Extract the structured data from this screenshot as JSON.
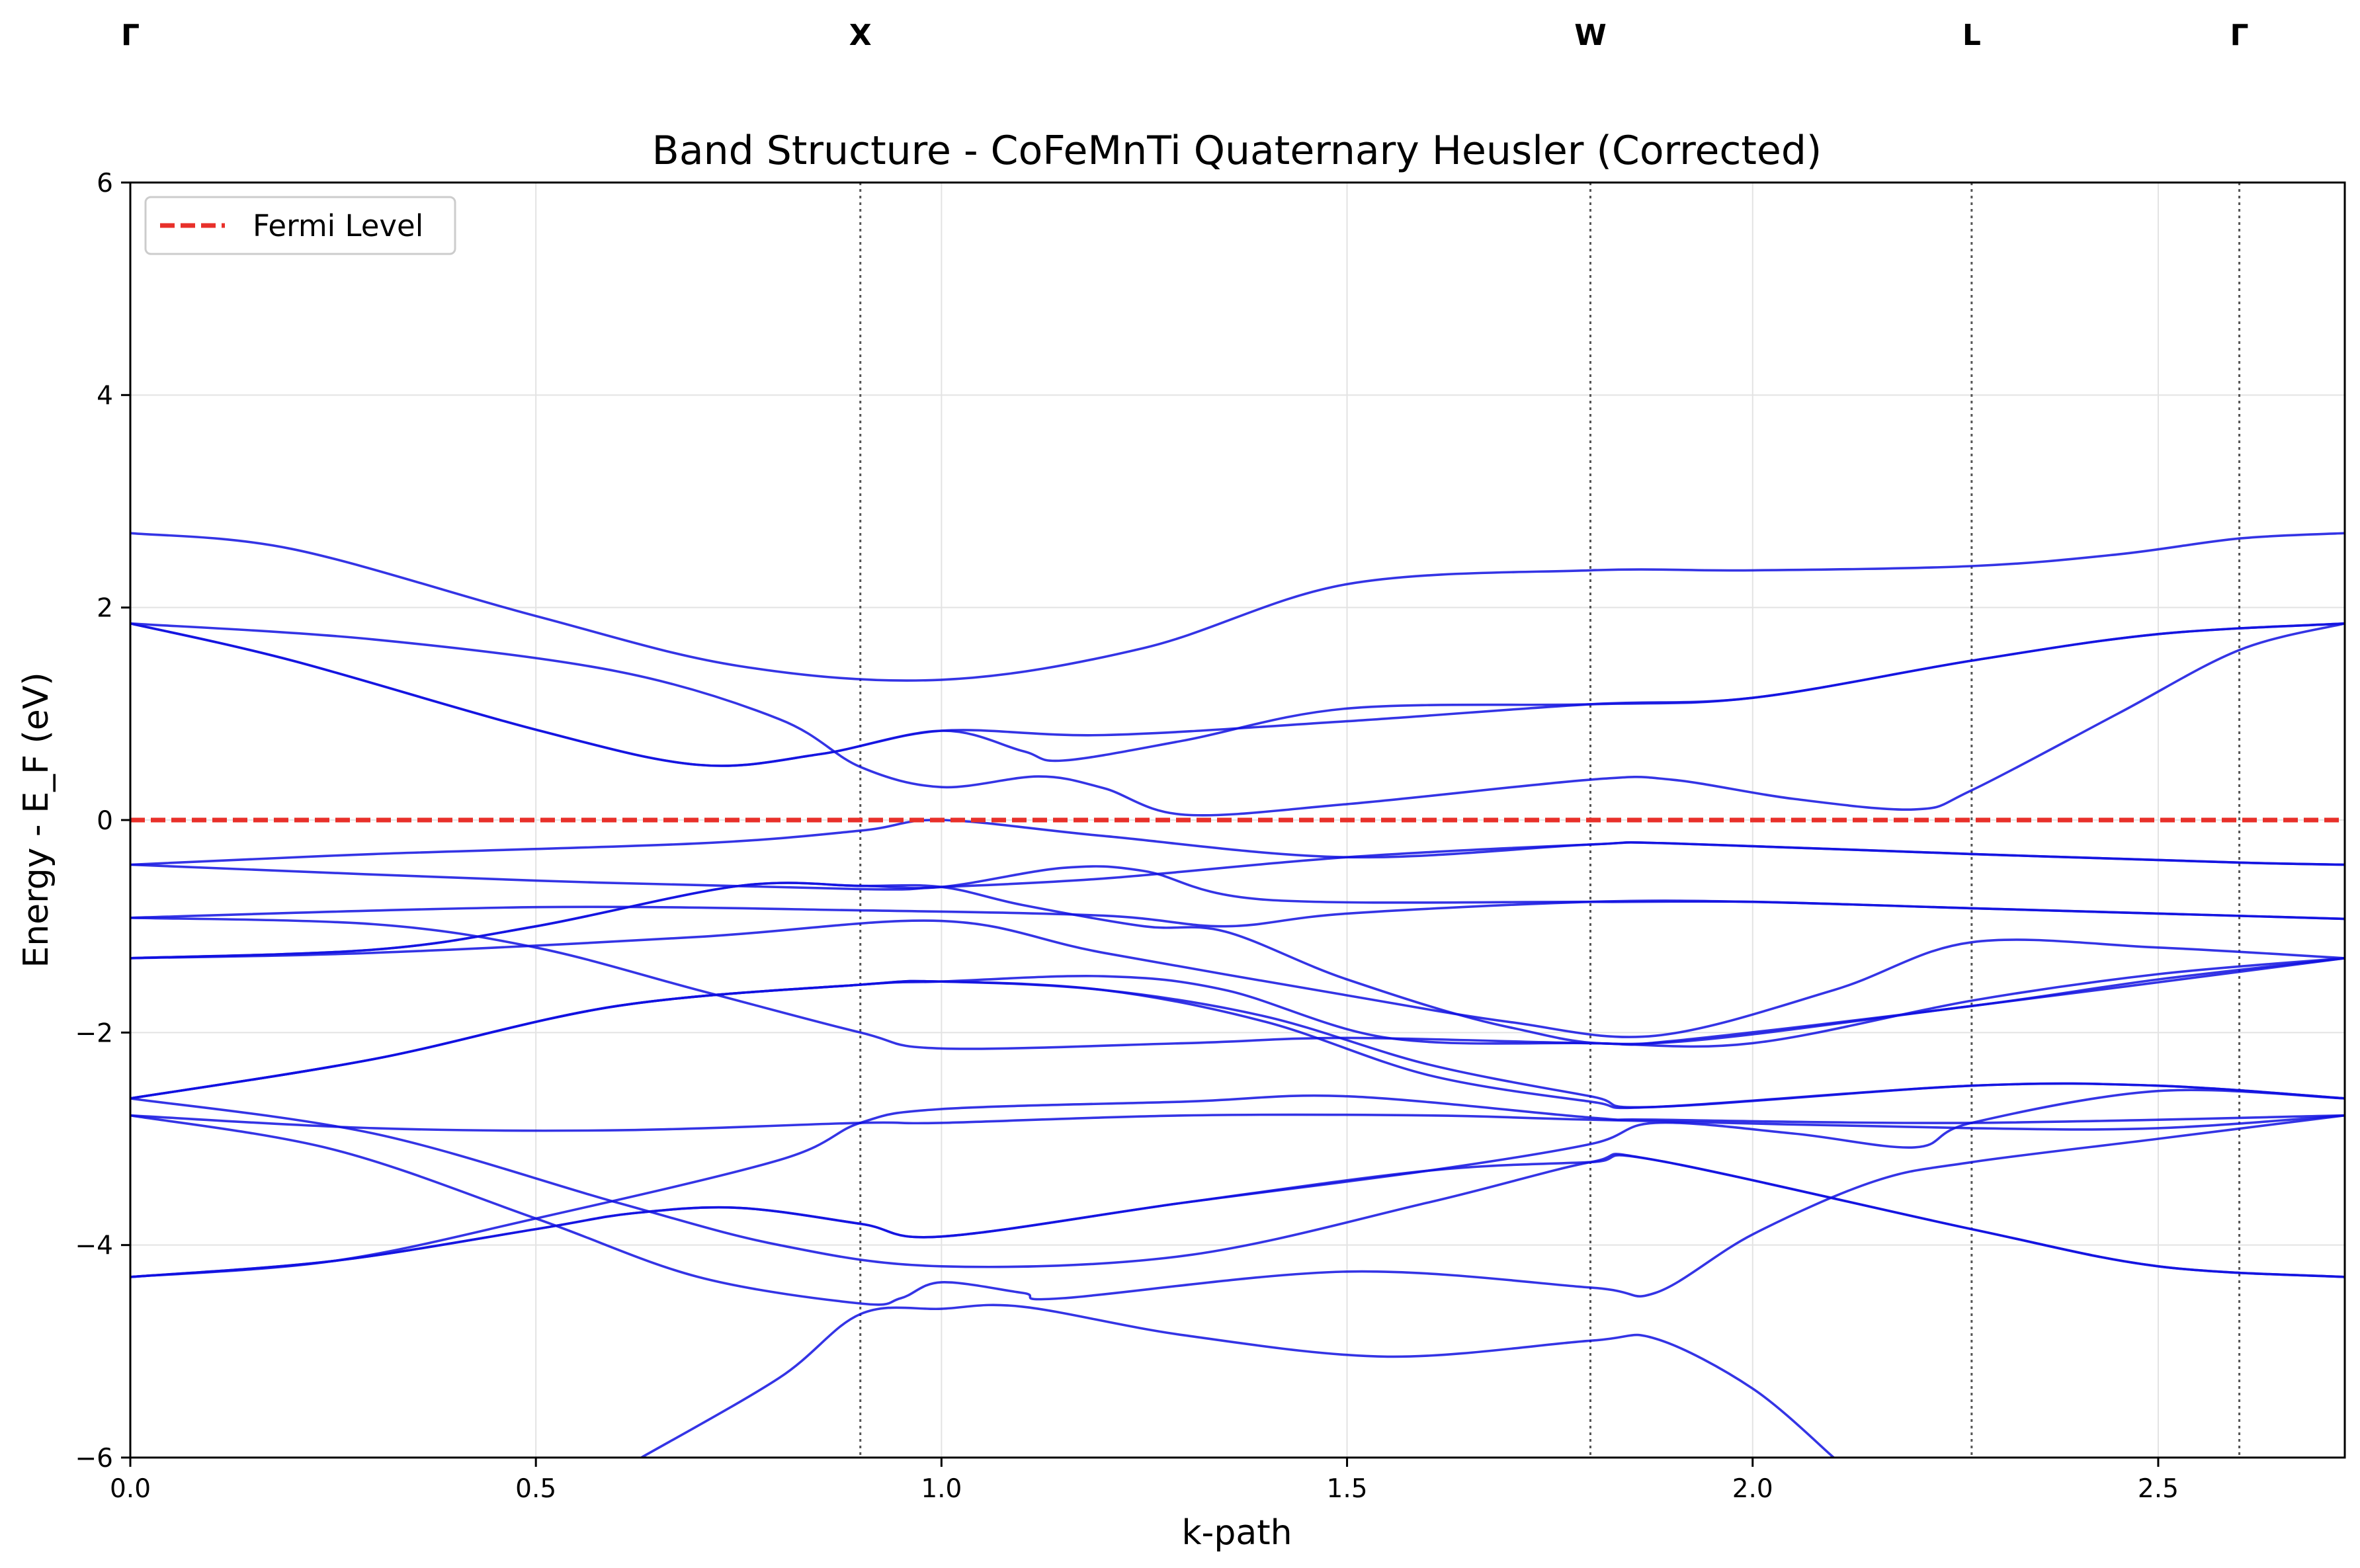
{
  "chart_data": {
    "type": "line",
    "title": "Band Structure - CoFeMnTi Quaternary Heusler (Corrected)",
    "xlabel": "k-path",
    "ylabel": "Energy - E_F (eV)",
    "xlim": [
      0.0,
      2.73
    ],
    "ylim": [
      -6,
      6
    ],
    "x_ticks": [
      0.0,
      0.5,
      1.0,
      1.5,
      2.0,
      2.5
    ],
    "x_tick_labels": [
      "0.0",
      "0.5",
      "1.0",
      "1.5",
      "2.0",
      "2.5"
    ],
    "y_ticks": [
      -6,
      -4,
      -2,
      0,
      2,
      4,
      6
    ],
    "y_tick_labels": [
      "−6",
      "−4",
      "−2",
      "0",
      "2",
      "4",
      "6"
    ],
    "grid": true,
    "legend": {
      "position": "top-left",
      "entries": [
        "Fermi Level"
      ]
    },
    "fermi_level": {
      "name": "Fermi Level",
      "y": 0,
      "color": "#e8302a",
      "style": "dashed"
    },
    "band_color": "#1010e0",
    "high_symmetry_points": [
      {
        "label": "Γ",
        "x": 0.0
      },
      {
        "label": "X",
        "x": 0.9
      },
      {
        "label": "W",
        "x": 1.8
      },
      {
        "label": "L",
        "x": 2.27
      },
      {
        "label": "Γ",
        "x": 2.6
      }
    ],
    "series": [
      {
        "points": [
          [
            0,
            2.7
          ],
          [
            0.2,
            2.55
          ],
          [
            0.5,
            1.92
          ],
          [
            0.75,
            1.45
          ],
          [
            1.0,
            1.32
          ],
          [
            1.25,
            1.62
          ],
          [
            1.5,
            2.22
          ],
          [
            1.8,
            2.35
          ],
          [
            2.0,
            2.35
          ],
          [
            2.27,
            2.39
          ],
          [
            2.45,
            2.5
          ],
          [
            2.6,
            2.65
          ],
          [
            2.73,
            2.7
          ]
        ]
      },
      {
        "points": [
          [
            0,
            1.85
          ],
          [
            0.3,
            1.7
          ],
          [
            0.6,
            1.4
          ],
          [
            0.8,
            0.95
          ],
          [
            0.9,
            0.5
          ],
          [
            1.0,
            0.31
          ],
          [
            1.12,
            0.41
          ],
          [
            1.2,
            0.3
          ],
          [
            1.3,
            0.05
          ],
          [
            1.5,
            0.15
          ],
          [
            1.8,
            0.38
          ],
          [
            1.9,
            0.38
          ],
          [
            2.05,
            0.2
          ],
          [
            2.2,
            0.1
          ],
          [
            2.27,
            0.28
          ],
          [
            2.45,
            1.0
          ],
          [
            2.6,
            1.6
          ],
          [
            2.73,
            1.85
          ]
        ]
      },
      {
        "points": [
          [
            0,
            1.85
          ],
          [
            0.2,
            1.5
          ],
          [
            0.5,
            0.85
          ],
          [
            0.7,
            0.52
          ],
          [
            0.85,
            0.62
          ],
          [
            1.0,
            0.84
          ],
          [
            1.1,
            0.65
          ],
          [
            1.15,
            0.56
          ],
          [
            1.3,
            0.75
          ],
          [
            1.5,
            1.05
          ],
          [
            1.8,
            1.09
          ],
          [
            2.0,
            1.15
          ],
          [
            2.27,
            1.5
          ],
          [
            2.5,
            1.75
          ],
          [
            2.73,
            1.85
          ]
        ]
      },
      {
        "points": [
          [
            0,
            1.85
          ],
          [
            0.2,
            1.5
          ],
          [
            0.5,
            0.85
          ],
          [
            0.7,
            0.52
          ],
          [
            0.85,
            0.62
          ],
          [
            1.0,
            0.84
          ],
          [
            1.2,
            0.8
          ],
          [
            1.5,
            0.93
          ],
          [
            1.8,
            1.09
          ],
          [
            2.0,
            1.15
          ],
          [
            2.27,
            1.5
          ],
          [
            2.5,
            1.75
          ],
          [
            2.73,
            1.85
          ]
        ]
      },
      {
        "points": [
          [
            0,
            -0.42
          ],
          [
            0.3,
            -0.32
          ],
          [
            0.7,
            -0.22
          ],
          [
            0.9,
            -0.1
          ],
          [
            1.0,
            0.0
          ],
          [
            1.2,
            -0.15
          ],
          [
            1.5,
            -0.35
          ],
          [
            1.8,
            -0.23
          ],
          [
            1.9,
            -0.22
          ],
          [
            2.27,
            -0.32
          ],
          [
            2.6,
            -0.4
          ],
          [
            2.73,
            -0.42
          ]
        ]
      },
      {
        "points": [
          [
            0,
            -0.42
          ],
          [
            0.5,
            -0.57
          ],
          [
            0.9,
            -0.65
          ],
          [
            1.0,
            -0.63
          ],
          [
            1.2,
            -0.55
          ],
          [
            1.5,
            -0.35
          ],
          [
            1.8,
            -0.23
          ],
          [
            1.9,
            -0.22
          ],
          [
            2.27,
            -0.32
          ],
          [
            2.6,
            -0.4
          ],
          [
            2.73,
            -0.42
          ]
        ]
      },
      {
        "points": [
          [
            0,
            -0.92
          ],
          [
            0.5,
            -0.82
          ],
          [
            0.9,
            -0.85
          ],
          [
            1.2,
            -0.9
          ],
          [
            1.35,
            -1.0
          ],
          [
            1.5,
            -0.88
          ],
          [
            1.8,
            -0.77
          ],
          [
            2.0,
            -0.77
          ],
          [
            2.27,
            -0.83
          ],
          [
            2.73,
            -0.93
          ]
        ]
      },
      {
        "points": [
          [
            0,
            -0.92
          ],
          [
            0.3,
            -0.98
          ],
          [
            0.5,
            -1.2
          ],
          [
            0.7,
            -1.6
          ],
          [
            0.9,
            -2.0
          ],
          [
            1.0,
            -2.15
          ],
          [
            1.3,
            -2.1
          ],
          [
            1.5,
            -2.05
          ],
          [
            1.8,
            -2.1
          ],
          [
            1.9,
            -2.08
          ],
          [
            2.27,
            -1.75
          ],
          [
            2.5,
            -1.5
          ],
          [
            2.73,
            -1.3
          ]
        ]
      },
      {
        "points": [
          [
            0,
            -1.3
          ],
          [
            0.3,
            -1.22
          ],
          [
            0.5,
            -1.0
          ],
          [
            0.75,
            -0.62
          ],
          [
            0.9,
            -0.62
          ],
          [
            1.0,
            -0.63
          ],
          [
            1.1,
            -0.8
          ],
          [
            1.25,
            -1.0
          ],
          [
            1.35,
            -1.05
          ],
          [
            1.5,
            -1.5
          ],
          [
            1.7,
            -1.95
          ],
          [
            1.88,
            -2.1
          ],
          [
            2.27,
            -1.75
          ],
          [
            2.73,
            -1.3
          ]
        ]
      },
      {
        "points": [
          [
            0,
            -1.3
          ],
          [
            0.3,
            -1.25
          ],
          [
            0.7,
            -1.1
          ],
          [
            1.0,
            -0.95
          ],
          [
            1.2,
            -1.25
          ],
          [
            1.5,
            -1.65
          ],
          [
            1.7,
            -1.9
          ],
          [
            1.88,
            -2.03
          ],
          [
            2.1,
            -1.6
          ],
          [
            2.27,
            -1.15
          ],
          [
            2.5,
            -1.2
          ],
          [
            2.73,
            -1.3
          ]
        ]
      },
      {
        "points": [
          [
            0,
            -1.3
          ],
          [
            0.3,
            -1.22
          ],
          [
            0.5,
            -1.0
          ],
          [
            0.75,
            -0.62
          ],
          [
            0.9,
            -0.62
          ],
          [
            1.0,
            -0.63
          ],
          [
            1.15,
            -0.45
          ],
          [
            1.25,
            -0.48
          ],
          [
            1.4,
            -0.75
          ],
          [
            1.8,
            -0.77
          ],
          [
            2.0,
            -0.77
          ],
          [
            2.27,
            -0.83
          ],
          [
            2.73,
            -0.93
          ]
        ]
      },
      {
        "points": [
          [
            0,
            -2.62
          ],
          [
            0.3,
            -2.25
          ],
          [
            0.6,
            -1.75
          ],
          [
            0.9,
            -1.55
          ],
          [
            1.0,
            -1.52
          ],
          [
            1.2,
            -1.47
          ],
          [
            1.35,
            -1.6
          ],
          [
            1.55,
            -2.05
          ],
          [
            1.8,
            -2.1
          ],
          [
            2.0,
            -2.1
          ],
          [
            2.27,
            -1.7
          ],
          [
            2.5,
            -1.45
          ],
          [
            2.73,
            -1.3
          ]
        ]
      },
      {
        "points": [
          [
            0,
            -2.62
          ],
          [
            0.3,
            -2.25
          ],
          [
            0.6,
            -1.75
          ],
          [
            0.9,
            -1.55
          ],
          [
            1.0,
            -1.52
          ],
          [
            1.2,
            -1.6
          ],
          [
            1.4,
            -1.85
          ],
          [
            1.6,
            -2.3
          ],
          [
            1.8,
            -2.6
          ],
          [
            1.88,
            -2.7
          ],
          [
            2.27,
            -2.5
          ],
          [
            2.5,
            -2.5
          ],
          [
            2.73,
            -2.62
          ]
        ]
      },
      {
        "points": [
          [
            0,
            -2.62
          ],
          [
            0.3,
            -2.25
          ],
          [
            0.6,
            -1.75
          ],
          [
            0.9,
            -1.55
          ],
          [
            1.0,
            -1.52
          ],
          [
            1.2,
            -1.6
          ],
          [
            1.4,
            -1.9
          ],
          [
            1.6,
            -2.4
          ],
          [
            1.8,
            -2.65
          ],
          [
            1.88,
            -2.7
          ],
          [
            2.27,
            -2.5
          ],
          [
            2.5,
            -2.5
          ],
          [
            2.73,
            -2.62
          ]
        ]
      },
      {
        "points": [
          [
            0,
            -2.62
          ],
          [
            0.3,
            -2.95
          ],
          [
            0.6,
            -3.6
          ],
          [
            0.8,
            -4.0
          ],
          [
            1.0,
            -4.2
          ],
          [
            1.3,
            -4.1
          ],
          [
            1.6,
            -3.6
          ],
          [
            1.8,
            -3.22
          ],
          [
            1.88,
            -3.2
          ],
          [
            2.27,
            -3.85
          ],
          [
            2.5,
            -4.2
          ],
          [
            2.73,
            -4.3
          ]
        ]
      },
      {
        "points": [
          [
            0,
            -2.78
          ],
          [
            0.3,
            -2.9
          ],
          [
            0.6,
            -2.92
          ],
          [
            0.9,
            -2.85
          ],
          [
            1.0,
            -2.85
          ],
          [
            1.3,
            -2.78
          ],
          [
            1.6,
            -2.78
          ],
          [
            1.8,
            -2.82
          ],
          [
            2.27,
            -2.9
          ],
          [
            2.5,
            -2.9
          ],
          [
            2.73,
            -2.78
          ]
        ]
      },
      {
        "points": [
          [
            0,
            -2.78
          ],
          [
            0.25,
            -3.1
          ],
          [
            0.5,
            -3.75
          ],
          [
            0.7,
            -4.3
          ],
          [
            0.9,
            -4.55
          ],
          [
            0.95,
            -4.5
          ],
          [
            1.0,
            -4.35
          ],
          [
            1.1,
            -4.45
          ],
          [
            1.15,
            -4.5
          ],
          [
            1.5,
            -4.25
          ],
          [
            1.8,
            -4.4
          ],
          [
            1.88,
            -4.45
          ],
          [
            2.0,
            -3.9
          ],
          [
            2.15,
            -3.4
          ],
          [
            2.27,
            -3.22
          ],
          [
            2.5,
            -3.0
          ],
          [
            2.73,
            -2.78
          ]
        ]
      },
      {
        "points": [
          [
            0,
            -4.3
          ],
          [
            0.25,
            -4.15
          ],
          [
            0.5,
            -3.85
          ],
          [
            0.62,
            -3.7
          ],
          [
            0.75,
            -3.65
          ],
          [
            0.9,
            -3.8
          ],
          [
            1.0,
            -3.92
          ],
          [
            1.3,
            -3.6
          ],
          [
            1.6,
            -3.3
          ],
          [
            1.8,
            -3.22
          ],
          [
            1.88,
            -3.2
          ],
          [
            2.27,
            -3.85
          ],
          [
            2.5,
            -4.2
          ],
          [
            2.73,
            -4.3
          ]
        ]
      },
      {
        "points": [
          [
            0,
            -4.3
          ],
          [
            0.25,
            -4.15
          ],
          [
            0.5,
            -3.75
          ],
          [
            0.8,
            -3.2
          ],
          [
            0.9,
            -2.85
          ],
          [
            1.0,
            -2.72
          ],
          [
            1.3,
            -2.65
          ],
          [
            1.5,
            -2.6
          ],
          [
            1.8,
            -2.8
          ],
          [
            1.88,
            -2.82
          ],
          [
            2.27,
            -2.85
          ],
          [
            2.73,
            -2.78
          ]
        ]
      },
      {
        "points": [
          [
            0,
            -4.3
          ],
          [
            0.25,
            -4.15
          ],
          [
            0.5,
            -3.85
          ],
          [
            0.62,
            -3.7
          ],
          [
            0.75,
            -3.65
          ],
          [
            0.9,
            -3.8
          ],
          [
            1.0,
            -3.92
          ],
          [
            1.3,
            -3.6
          ],
          [
            1.6,
            -3.3
          ],
          [
            1.8,
            -3.05
          ],
          [
            1.88,
            -2.85
          ],
          [
            2.05,
            -2.95
          ],
          [
            2.2,
            -3.08
          ],
          [
            2.27,
            -2.85
          ],
          [
            2.5,
            -2.55
          ],
          [
            2.73,
            -2.62
          ]
        ]
      },
      {
        "points": [
          [
            0.63,
            -6.0
          ],
          [
            0.8,
            -5.25
          ],
          [
            0.9,
            -4.65
          ],
          [
            1.0,
            -4.6
          ],
          [
            1.1,
            -4.58
          ],
          [
            1.3,
            -4.85
          ],
          [
            1.55,
            -5.05
          ],
          [
            1.8,
            -4.9
          ],
          [
            1.88,
            -4.88
          ],
          [
            2.0,
            -5.35
          ],
          [
            2.1,
            -6.0
          ]
        ]
      }
    ]
  }
}
